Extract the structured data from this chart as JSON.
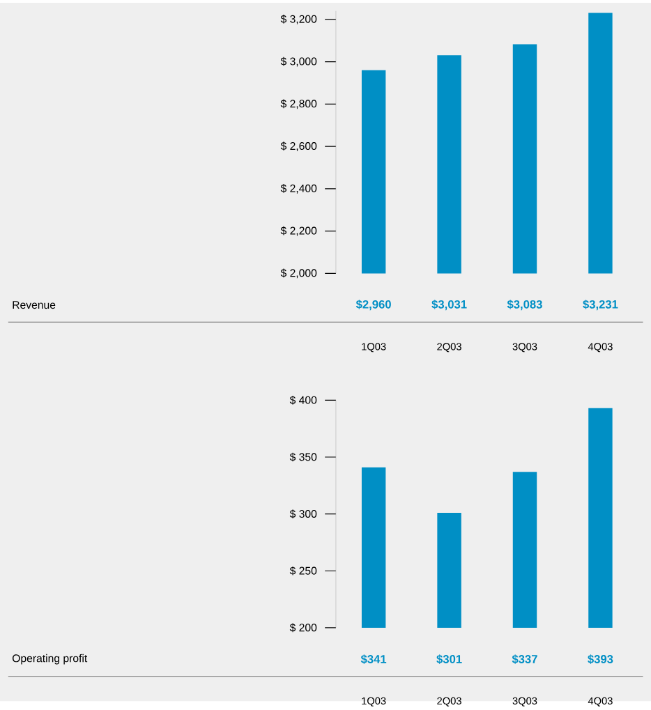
{
  "chart_data": [
    {
      "type": "bar",
      "ylabel": "Revenue",
      "categories": [
        "1Q03",
        "2Q03",
        "3Q03",
        "4Q03"
      ],
      "values": [
        2960,
        3031,
        3083,
        3231
      ],
      "value_labels": [
        "$2,960",
        "$3,031",
        "$3,083",
        "$3,231"
      ],
      "color": "#008fc5",
      "ylim": [
        2000,
        3240
      ],
      "yticks": [
        {
          "value": 2000,
          "label": "$ 2,000"
        },
        {
          "value": 2200,
          "label": "$ 2,200"
        },
        {
          "value": 2400,
          "label": "$ 2,400"
        },
        {
          "value": 2600,
          "label": "$ 2,600"
        },
        {
          "value": 2800,
          "label": "$ 2,800"
        },
        {
          "value": 3000,
          "label": "$ 3,000"
        },
        {
          "value": 3200,
          "label": "$ 3,200"
        }
      ]
    },
    {
      "type": "bar",
      "ylabel": "Operating profit",
      "categories": [
        "1Q03",
        "2Q03",
        "3Q03",
        "4Q03"
      ],
      "values": [
        341,
        301,
        337,
        393
      ],
      "value_labels": [
        "$341",
        "$301",
        "$337",
        "$393"
      ],
      "color": "#008fc5",
      "ylim": [
        200,
        400
      ],
      "yticks": [
        {
          "value": 200,
          "label": "$    200"
        },
        {
          "value": 250,
          "label": "$    250"
        },
        {
          "value": 300,
          "label": "$    300"
        },
        {
          "value": 350,
          "label": "$    350"
        },
        {
          "value": 400,
          "label": "$    400"
        }
      ]
    }
  ]
}
